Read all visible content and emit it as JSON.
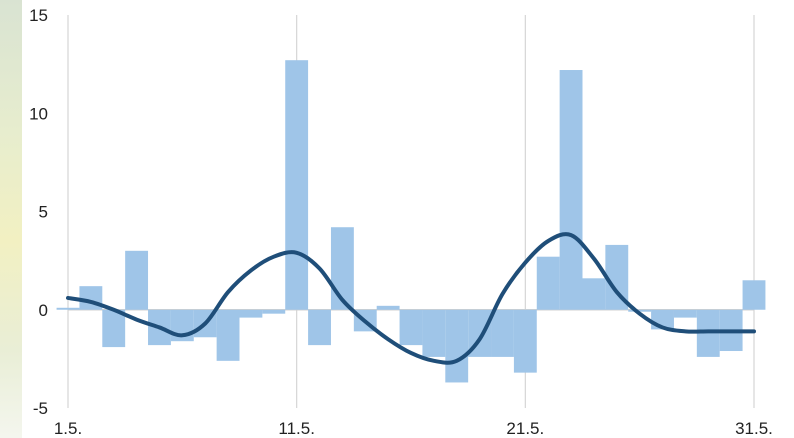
{
  "chart_data": {
    "type": "bar",
    "title": "",
    "xlabel": "",
    "ylabel": "",
    "ylim": [
      -5,
      15
    ],
    "yticks": [
      15,
      10,
      5,
      0,
      -5
    ],
    "xlim": [
      1,
      31
    ],
    "xticks": [
      {
        "x": 1,
        "label": "1.5."
      },
      {
        "x": 11,
        "label": "11.5."
      },
      {
        "x": 21,
        "label": "21.5."
      },
      {
        "x": 31,
        "label": "31.5."
      }
    ],
    "grid": "vertical",
    "legend": "none",
    "series": [
      {
        "type": "bar",
        "color": "#9fc5e8",
        "x": [
          1,
          2,
          3,
          4,
          5,
          6,
          7,
          8,
          9,
          10,
          11,
          12,
          13,
          14,
          15,
          16,
          17,
          18,
          19,
          20,
          21,
          22,
          23,
          24,
          25,
          26,
          27,
          28,
          29,
          30,
          31
        ],
        "values": [
          0.1,
          1.2,
          -1.9,
          3.0,
          -1.8,
          -1.6,
          -1.4,
          -2.6,
          -0.4,
          -0.2,
          12.7,
          -1.8,
          4.2,
          -1.1,
          0.2,
          -1.8,
          -2.4,
          -3.7,
          -2.4,
          -2.4,
          -3.2,
          2.7,
          12.2,
          1.6,
          3.3,
          -0.1,
          -1.0,
          -0.4,
          -2.4,
          -2.1,
          1.5
        ]
      },
      {
        "type": "line",
        "color": "#1f4e79",
        "x": [
          1,
          2,
          3,
          4,
          5,
          6,
          7,
          8,
          9,
          10,
          11,
          12,
          13,
          14,
          15,
          16,
          17,
          18,
          19,
          20,
          21,
          22,
          23,
          24,
          25,
          26,
          27,
          28,
          29,
          30,
          31
        ],
        "values": [
          0.6,
          0.4,
          0.0,
          -0.5,
          -0.9,
          -1.3,
          -0.7,
          0.9,
          2.0,
          2.7,
          2.9,
          2.1,
          0.5,
          -0.6,
          -1.5,
          -2.2,
          -2.6,
          -2.6,
          -1.5,
          0.8,
          2.4,
          3.5,
          3.8,
          2.6,
          0.9,
          -0.2,
          -0.9,
          -1.1,
          -1.1,
          -1.1,
          -1.1
        ]
      }
    ]
  }
}
